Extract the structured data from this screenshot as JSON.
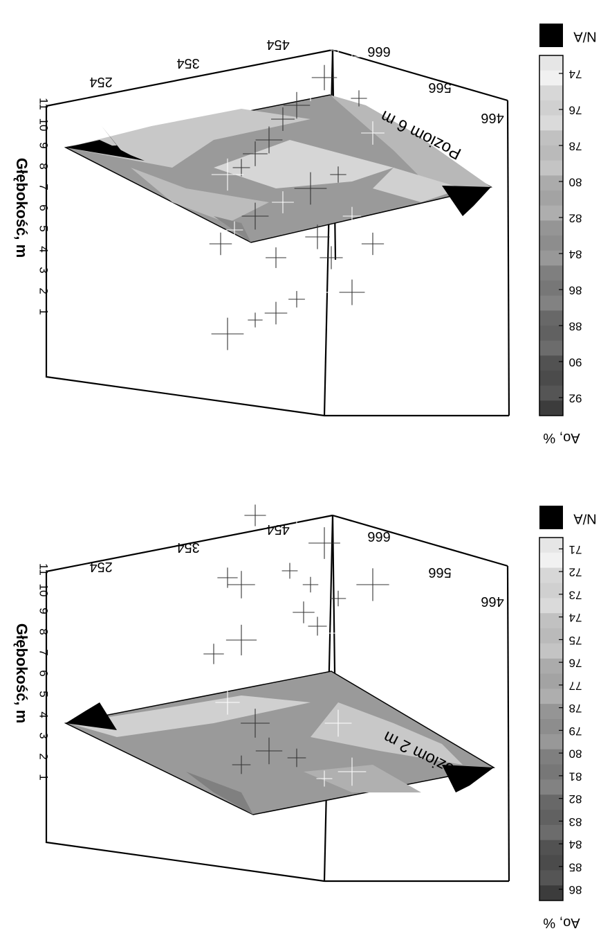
{
  "panels": [
    {
      "level_label": "Poziom 6 m",
      "depth_axis_label": "Głębokość, m",
      "depth_ticks": [
        "1",
        "2",
        "3",
        "4",
        "5",
        "6",
        "7",
        "8",
        "9",
        "10",
        "11"
      ],
      "x_ticks": [
        "254",
        "354",
        "454"
      ],
      "y_ticks": [
        "666",
        "566",
        "466"
      ],
      "colorbar": {
        "na_label": "N/A",
        "ticks": [
          "74",
          "76",
          "78",
          "80",
          "82",
          "84",
          "86",
          "88",
          "90",
          "92"
        ],
        "unit_label": "Ao, %",
        "range": [
          73,
          93
        ]
      },
      "surface_depth": 6
    },
    {
      "level_label": "Poziom 2 m",
      "depth_axis_label": "Głębokość, m",
      "depth_ticks": [
        "1",
        "2",
        "3",
        "4",
        "5",
        "6",
        "7",
        "8",
        "9",
        "10",
        "11"
      ],
      "x_ticks": [
        "254",
        "354",
        "454"
      ],
      "y_ticks": [
        "666",
        "566",
        "466"
      ],
      "colorbar": {
        "na_label": "N/A",
        "ticks": [
          "71",
          "72",
          "73",
          "74",
          "75",
          "76",
          "77",
          "78",
          "79",
          "80",
          "81",
          "82",
          "83",
          "84",
          "85",
          "86"
        ],
        "unit_label": "Ao, %",
        "range": [
          70.5,
          86.5
        ]
      },
      "surface_depth": 2
    }
  ],
  "colors": {
    "frame": "#000000",
    "na": "#000000",
    "light": "#e8e8e8",
    "dark": "#404040"
  }
}
